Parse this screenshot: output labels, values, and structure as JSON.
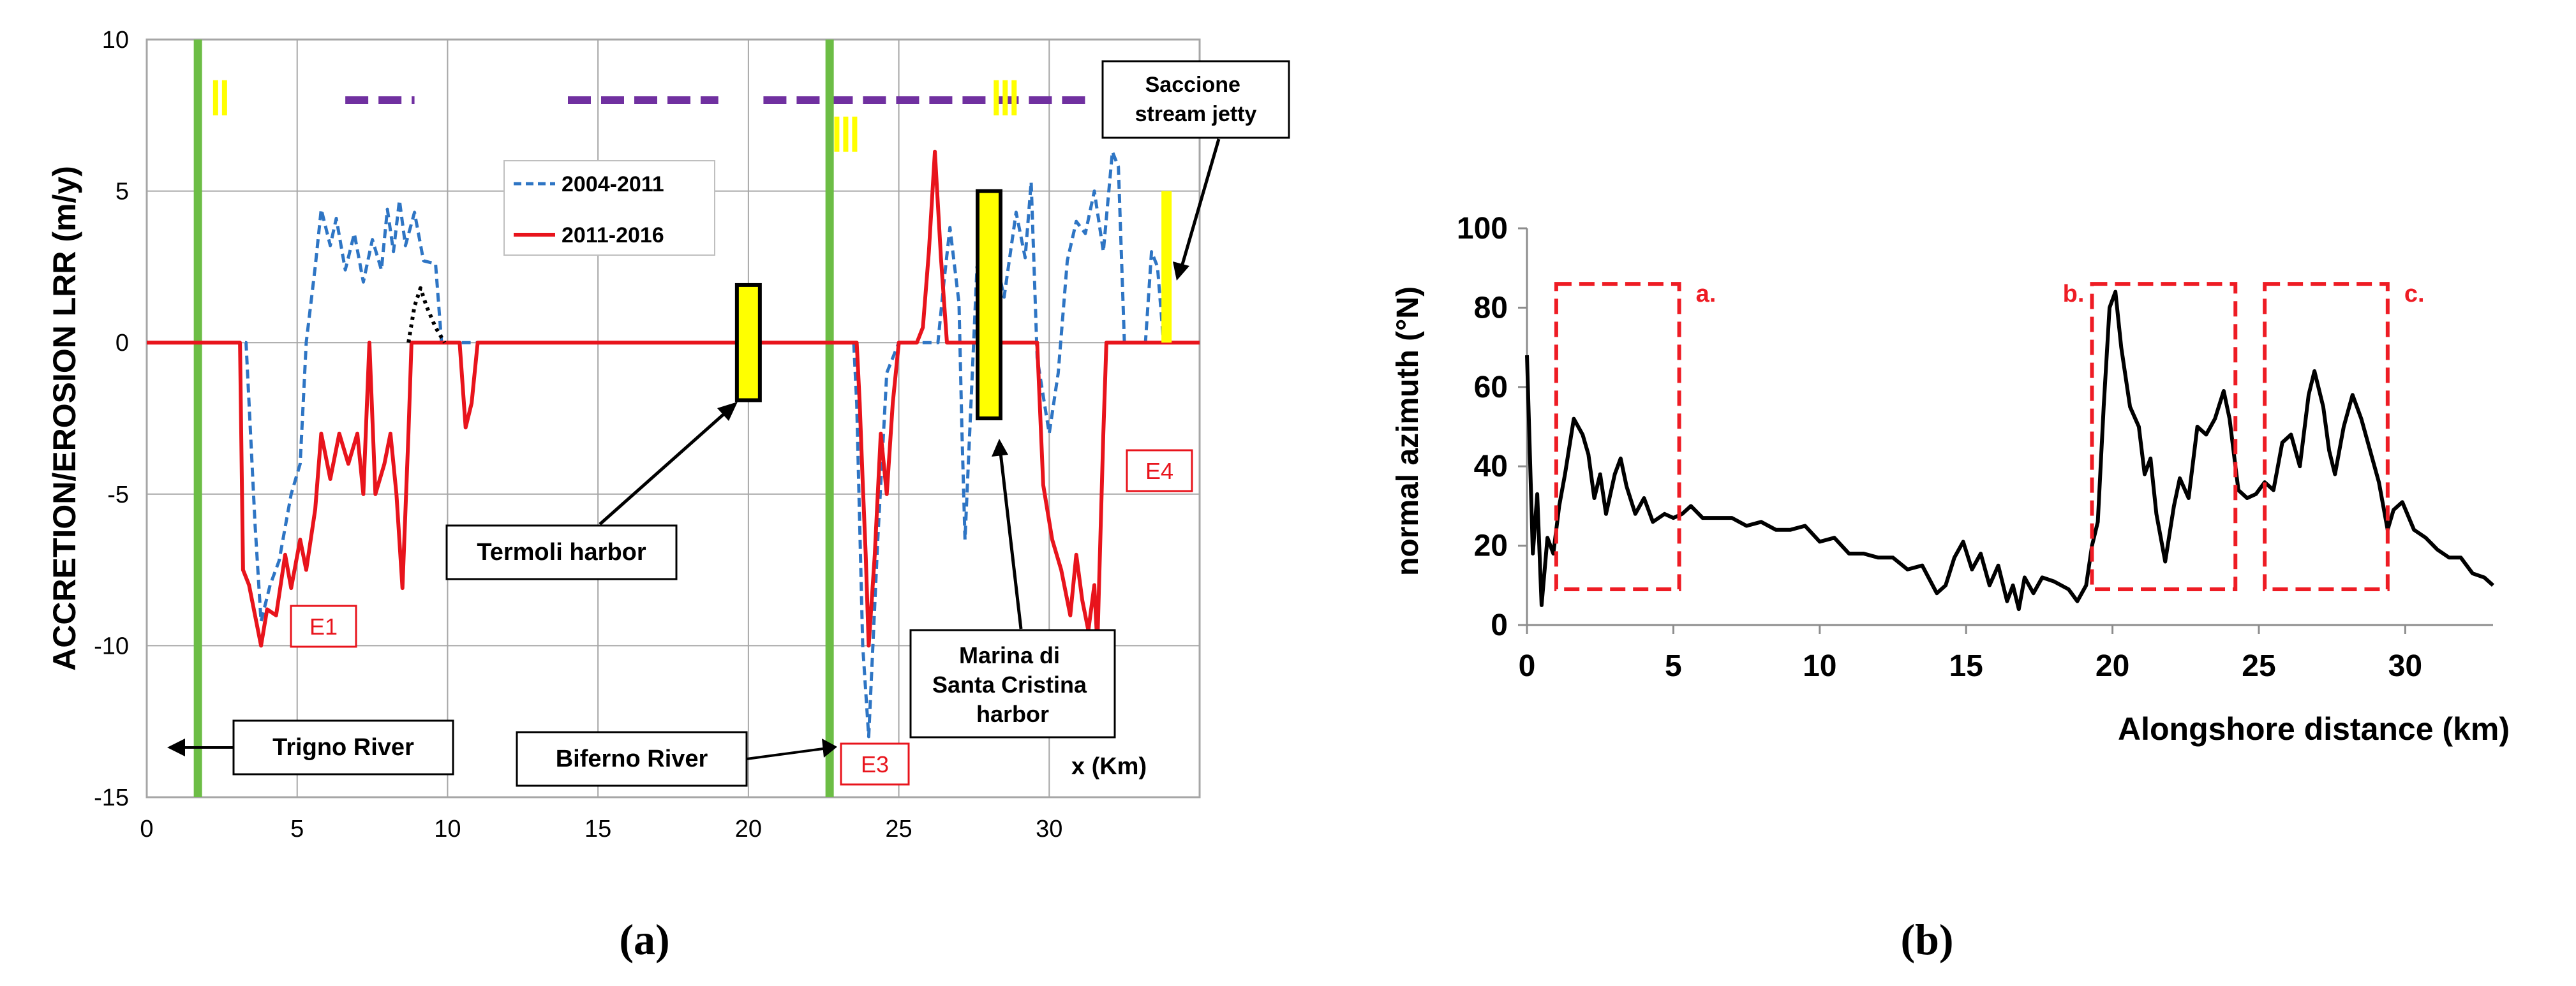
{
  "colors": {
    "blue_series": "#2e75c4",
    "red_series": "#e8141c",
    "green_river": "#6cbd45",
    "yellow": "#ffff00",
    "purple": "#7030a0",
    "dashed_box": "#ee1c24",
    "grid": "#a6a6a6",
    "axis": "#8c8c8c",
    "black": "#000000"
  },
  "captions": {
    "a": "(a)",
    "b": "(b)"
  },
  "chart_data": [
    {
      "id": "a",
      "type": "line",
      "title": "",
      "xlabel": "x (Km)",
      "ylabel": "ACCRETION/EROSION LRR (m/y)",
      "xlim": [
        0,
        35
      ],
      "ylim": [
        -15,
        10
      ],
      "xticks": [
        0,
        5,
        10,
        15,
        20,
        25,
        30
      ],
      "yticks": [
        10,
        5,
        0,
        -5,
        -10,
        -15
      ],
      "grid": true,
      "legend": {
        "position": "upper-middle",
        "entries": [
          "2004-2011",
          "2011-2016"
        ]
      },
      "series": [
        {
          "name": "2004-2011",
          "style": "dashed",
          "points": [
            [
              0,
              0
            ],
            [
              3.3,
              0
            ],
            [
              3.6,
              -6
            ],
            [
              3.8,
              -9.2
            ],
            [
              4.1,
              -8
            ],
            [
              4.4,
              -7.2
            ],
            [
              4.8,
              -5
            ],
            [
              5.1,
              -4
            ],
            [
              5.3,
              0
            ],
            [
              5.6,
              2.5
            ],
            [
              5.8,
              4.4
            ],
            [
              6.1,
              3.2
            ],
            [
              6.3,
              4.1
            ],
            [
              6.6,
              2.4
            ],
            [
              6.9,
              3.6
            ],
            [
              7.2,
              2
            ],
            [
              7.5,
              3.4
            ],
            [
              7.8,
              2.4
            ],
            [
              8.0,
              4.4
            ],
            [
              8.2,
              3
            ],
            [
              8.4,
              4.7
            ],
            [
              8.6,
              3.2
            ],
            [
              8.9,
              4.3
            ],
            [
              9.2,
              2.7
            ],
            [
              9.6,
              2.6
            ],
            [
              9.8,
              0
            ],
            [
              11,
              0
            ],
            [
              23.5,
              0
            ],
            [
              23.6,
              -2
            ],
            [
              23.8,
              -10
            ],
            [
              24.0,
              -13
            ],
            [
              24.3,
              -6.5
            ],
            [
              24.6,
              -1
            ],
            [
              25.0,
              0
            ],
            [
              26.3,
              0
            ],
            [
              26.5,
              2
            ],
            [
              26.7,
              3.8
            ],
            [
              27.0,
              1.3
            ],
            [
              27.1,
              -3
            ],
            [
              27.2,
              -6.5
            ],
            [
              27.4,
              -2
            ],
            [
              27.6,
              2.5
            ],
            [
              28.0,
              3.8
            ],
            [
              28.5,
              1.5
            ],
            [
              28.9,
              4.3
            ],
            [
              29.2,
              2.8
            ],
            [
              29.4,
              5.3
            ],
            [
              29.6,
              -0.5
            ],
            [
              30.0,
              -3
            ],
            [
              30.3,
              -1
            ],
            [
              30.6,
              2.7
            ],
            [
              30.9,
              4
            ],
            [
              31.2,
              3.6
            ],
            [
              31.5,
              5
            ],
            [
              31.8,
              3
            ],
            [
              32.1,
              6.3
            ],
            [
              32.3,
              5.8
            ],
            [
              32.5,
              0
            ],
            [
              33.2,
              0
            ],
            [
              33.4,
              3
            ],
            [
              33.6,
              2.5
            ],
            [
              33.8,
              0
            ],
            [
              35,
              0
            ]
          ]
        },
        {
          "name": "2011-2016",
          "style": "solid",
          "points": [
            [
              0,
              0
            ],
            [
              3.1,
              0
            ],
            [
              3.2,
              -7.5
            ],
            [
              3.4,
              -8
            ],
            [
              3.6,
              -9
            ],
            [
              3.8,
              -10
            ],
            [
              4.0,
              -8.8
            ],
            [
              4.3,
              -9
            ],
            [
              4.6,
              -7
            ],
            [
              4.8,
              -8.1
            ],
            [
              5.1,
              -6.5
            ],
            [
              5.3,
              -7.5
            ],
            [
              5.6,
              -5.5
            ],
            [
              5.8,
              -3
            ],
            [
              6.1,
              -4.5
            ],
            [
              6.4,
              -3
            ],
            [
              6.7,
              -4
            ],
            [
              7.0,
              -3
            ],
            [
              7.2,
              -5
            ],
            [
              7.4,
              0
            ],
            [
              7.6,
              -5
            ],
            [
              7.9,
              -4
            ],
            [
              8.1,
              -3
            ],
            [
              8.3,
              -5
            ],
            [
              8.5,
              -8.1
            ],
            [
              8.7,
              -3
            ],
            [
              8.8,
              0
            ],
            [
              10.4,
              0
            ],
            [
              10.6,
              -2.8
            ],
            [
              10.8,
              -2
            ],
            [
              11.0,
              0
            ],
            [
              23.6,
              0
            ],
            [
              23.7,
              -2
            ],
            [
              23.8,
              -4.6
            ],
            [
              23.9,
              -7
            ],
            [
              24.0,
              -10
            ],
            [
              24.2,
              -7
            ],
            [
              24.4,
              -3
            ],
            [
              24.6,
              -5
            ],
            [
              24.8,
              -2
            ],
            [
              25.0,
              0
            ],
            [
              25.6,
              0
            ],
            [
              25.8,
              0.5
            ],
            [
              26.0,
              3
            ],
            [
              26.2,
              6.3
            ],
            [
              26.4,
              2.8
            ],
            [
              26.6,
              0
            ],
            [
              29.6,
              0
            ],
            [
              29.8,
              -4.7
            ],
            [
              30.1,
              -6.5
            ],
            [
              30.4,
              -7.5
            ],
            [
              30.7,
              -9
            ],
            [
              30.9,
              -7
            ],
            [
              31.1,
              -8.5
            ],
            [
              31.3,
              -9.5
            ],
            [
              31.5,
              -8
            ],
            [
              31.6,
              -10
            ],
            [
              31.8,
              -3
            ],
            [
              31.9,
              0
            ],
            [
              35,
              0
            ]
          ]
        },
        {
          "name": "dotted",
          "style": "dotted",
          "points": [
            [
              8.7,
              0
            ],
            [
              8.9,
              1.2
            ],
            [
              9.1,
              1.8
            ],
            [
              9.3,
              1.2
            ],
            [
              9.6,
              0.5
            ],
            [
              9.9,
              0
            ]
          ]
        }
      ],
      "river_lines": [
        {
          "x": 1.7,
          "label": "Trigno River"
        },
        {
          "x": 22.7,
          "label": "Biferno River"
        }
      ],
      "harbors": [
        {
          "x": 20.0,
          "y_low": -1.9,
          "y_high": 1.9,
          "label": "Termoli harbor"
        },
        {
          "x": 28.0,
          "y_low": -2.5,
          "y_high": 5.0,
          "label": "Marina di Santa Cristina harbor"
        }
      ],
      "jetty": {
        "x": 33.9,
        "y_low": 0,
        "y_high": 5.0,
        "label": "Saccione stream jetty"
      },
      "sector_markers": [
        {
          "x": 2.5,
          "y": 7.5,
          "label": "II"
        },
        {
          "x": 23.3,
          "y": 6.3,
          "label": "III"
        },
        {
          "x": 28.6,
          "y": 7.5,
          "label": "III"
        }
      ],
      "purple_segments": [
        [
          6.6,
          8.9
        ],
        [
          14.0,
          19.0
        ],
        [
          20.5,
          31.3
        ]
      ],
      "erosion_labels": [
        {
          "x": 5.9,
          "y": -9.5,
          "label": "E1"
        },
        {
          "x": 24.0,
          "y": -13.8,
          "label": "E3"
        },
        {
          "x": 33.7,
          "y": -4.3,
          "label": "E4"
        }
      ]
    },
    {
      "id": "b",
      "type": "line",
      "title": "",
      "xlabel": "Alongshore distance (km)",
      "ylabel": "normal azimuth (°N)",
      "xlim": [
        0,
        33
      ],
      "ylim": [
        0,
        100
      ],
      "xticks": [
        0,
        5,
        10,
        15,
        20,
        25,
        30
      ],
      "yticks": [
        0,
        20,
        40,
        60,
        80,
        100
      ],
      "grid": false,
      "series": [
        {
          "name": "normal azimuth",
          "points": [
            [
              0,
              68
            ],
            [
              0.2,
              18
            ],
            [
              0.35,
              33
            ],
            [
              0.5,
              5
            ],
            [
              0.7,
              22
            ],
            [
              0.9,
              18
            ],
            [
              1.1,
              30
            ],
            [
              1.3,
              38
            ],
            [
              1.6,
              52
            ],
            [
              1.9,
              48
            ],
            [
              2.1,
              43
            ],
            [
              2.3,
              32
            ],
            [
              2.5,
              38
            ],
            [
              2.7,
              28
            ],
            [
              3.0,
              38
            ],
            [
              3.2,
              42
            ],
            [
              3.4,
              35
            ],
            [
              3.7,
              28
            ],
            [
              4.0,
              32
            ],
            [
              4.3,
              26
            ],
            [
              4.7,
              28
            ],
            [
              5.0,
              27
            ],
            [
              5.3,
              28
            ],
            [
              5.6,
              30
            ],
            [
              6.0,
              27
            ],
            [
              6.5,
              27
            ],
            [
              7.0,
              27
            ],
            [
              7.5,
              25
            ],
            [
              8.0,
              26
            ],
            [
              8.5,
              24
            ],
            [
              9.0,
              24
            ],
            [
              9.5,
              25
            ],
            [
              10.0,
              21
            ],
            [
              10.5,
              22
            ],
            [
              11.0,
              18
            ],
            [
              11.5,
              18
            ],
            [
              12.0,
              17
            ],
            [
              12.5,
              17
            ],
            [
              13.0,
              14
            ],
            [
              13.5,
              15
            ],
            [
              14.0,
              8
            ],
            [
              14.3,
              10
            ],
            [
              14.6,
              17
            ],
            [
              14.9,
              21
            ],
            [
              15.2,
              14
            ],
            [
              15.5,
              18
            ],
            [
              15.8,
              10
            ],
            [
              16.1,
              15
            ],
            [
              16.4,
              6
            ],
            [
              16.6,
              10
            ],
            [
              16.8,
              4
            ],
            [
              17.0,
              12
            ],
            [
              17.3,
              8
            ],
            [
              17.6,
              12
            ],
            [
              18.0,
              11
            ],
            [
              18.5,
              9
            ],
            [
              18.8,
              6
            ],
            [
              19.1,
              10
            ],
            [
              19.3,
              20
            ],
            [
              19.5,
              26
            ],
            [
              19.7,
              55
            ],
            [
              19.9,
              80
            ],
            [
              20.1,
              84
            ],
            [
              20.3,
              70
            ],
            [
              20.6,
              55
            ],
            [
              20.9,
              50
            ],
            [
              21.1,
              38
            ],
            [
              21.3,
              42
            ],
            [
              21.5,
              28
            ],
            [
              21.8,
              16
            ],
            [
              22.1,
              30
            ],
            [
              22.3,
              37
            ],
            [
              22.6,
              32
            ],
            [
              22.9,
              50
            ],
            [
              23.2,
              48
            ],
            [
              23.5,
              52
            ],
            [
              23.8,
              59
            ],
            [
              24.0,
              52
            ],
            [
              24.3,
              34
            ],
            [
              24.6,
              32
            ],
            [
              24.9,
              33
            ],
            [
              25.2,
              36
            ],
            [
              25.5,
              34
            ],
            [
              25.8,
              46
            ],
            [
              26.1,
              48
            ],
            [
              26.4,
              40
            ],
            [
              26.7,
              58
            ],
            [
              26.9,
              64
            ],
            [
              27.2,
              55
            ],
            [
              27.4,
              44
            ],
            [
              27.6,
              38
            ],
            [
              27.9,
              50
            ],
            [
              28.2,
              58
            ],
            [
              28.5,
              52
            ],
            [
              28.8,
              44
            ],
            [
              29.1,
              36
            ],
            [
              29.4,
              24
            ],
            [
              29.6,
              29
            ],
            [
              29.9,
              31
            ],
            [
              30.3,
              24
            ],
            [
              30.7,
              22
            ],
            [
              31.1,
              19
            ],
            [
              31.5,
              17
            ],
            [
              31.9,
              17
            ],
            [
              32.3,
              13
            ],
            [
              32.7,
              12
            ],
            [
              33,
              10
            ]
          ]
        }
      ],
      "boxes": [
        {
          "x0": 1.0,
          "x1": 5.2,
          "y0": 9,
          "y1": 86,
          "label": "a."
        },
        {
          "x0": 19.3,
          "x1": 24.2,
          "y0": 9,
          "y1": 86,
          "label": "b."
        },
        {
          "x0": 25.2,
          "x1": 29.4,
          "y0": 9,
          "y1": 86,
          "label": "c."
        }
      ]
    }
  ]
}
